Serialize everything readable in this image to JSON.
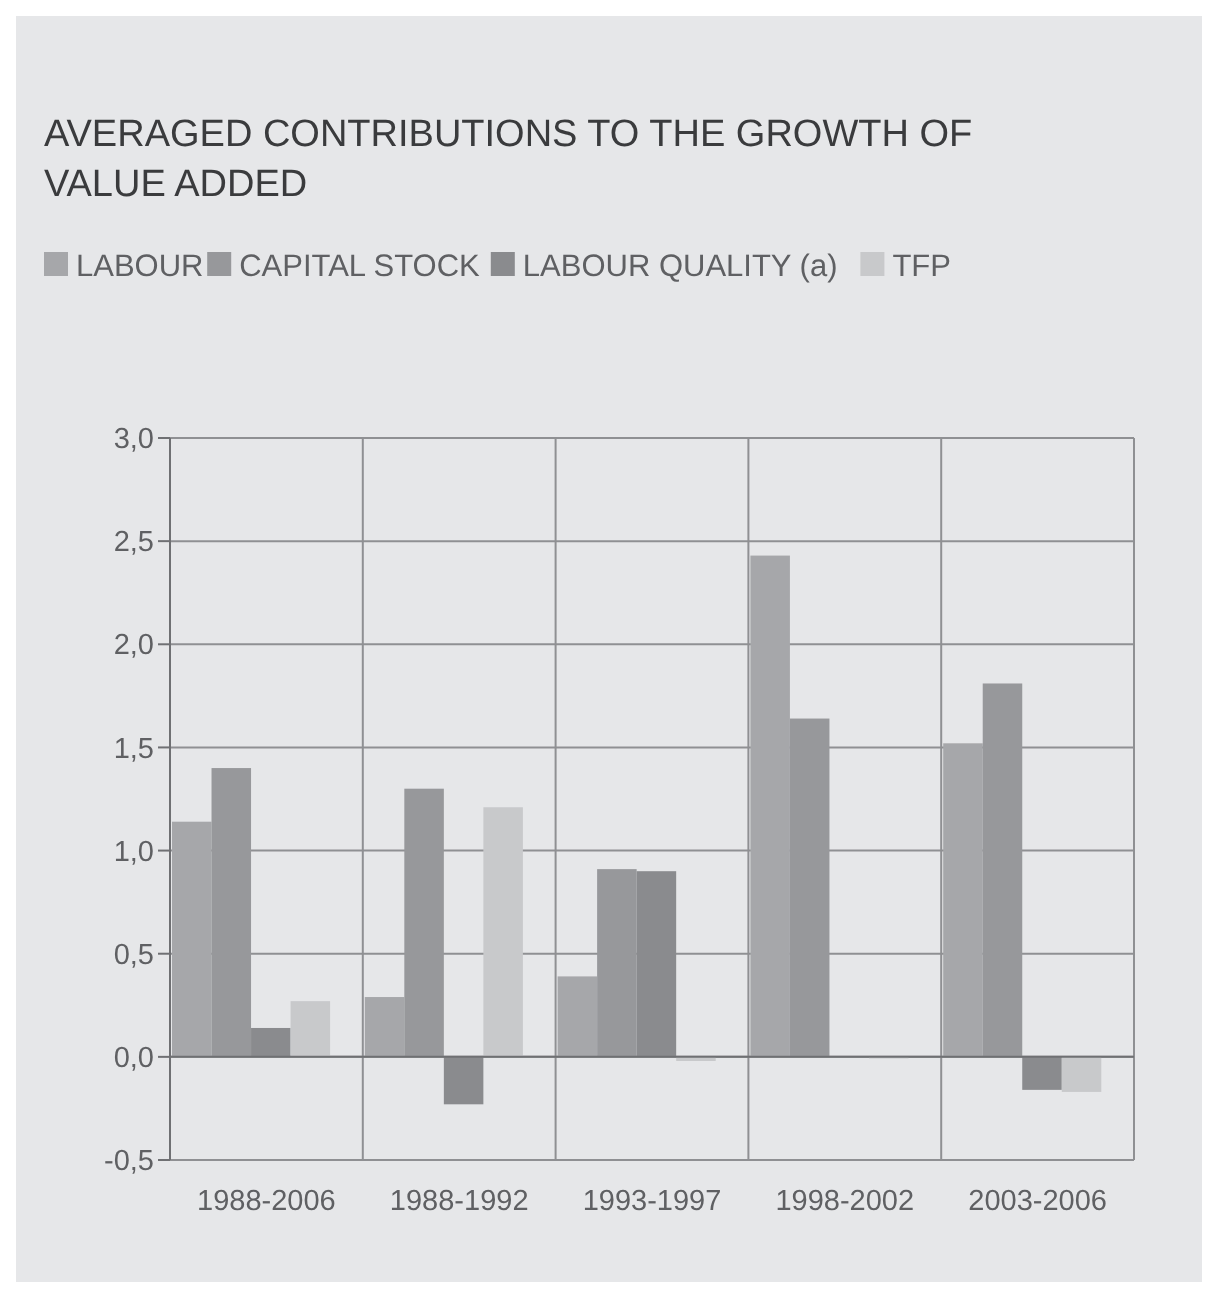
{
  "chart_data": {
    "type": "bar",
    "title": "AVERAGED CONTRIBUTIONS TO THE GROWTH OF VALUE ADDED",
    "categories": [
      "1988-2006",
      "1988-1992",
      "1993-1997",
      "1998-2002",
      "2003-2006"
    ],
    "series": [
      {
        "name": "LABOUR",
        "color": "#a6a7aa",
        "values": [
          1.14,
          0.29,
          0.39,
          2.43,
          1.52
        ]
      },
      {
        "name": "CAPITAL STOCK",
        "color": "#97989b",
        "values": [
          1.4,
          1.3,
          0.91,
          1.64,
          1.81
        ]
      },
      {
        "name": "LABOUR QUALITY (a)",
        "color": "#8a8b8e",
        "values": [
          0.14,
          -0.23,
          0.9,
          null,
          -0.16
        ]
      },
      {
        "name": "TFP",
        "color": "#c8c9cb",
        "values": [
          0.27,
          1.21,
          -0.02,
          0,
          -0.17
        ]
      }
    ],
    "ylim": [
      -0.5,
      3
    ],
    "yticks": [
      {
        "value": -0.5,
        "label": "-0,5"
      },
      {
        "value": 0,
        "label": "0,0"
      },
      {
        "value": 0.5,
        "label": "0,5"
      },
      {
        "value": 1,
        "label": "1,0"
      },
      {
        "value": 1.5,
        "label": "1,5"
      },
      {
        "value": 2,
        "label": "2,0"
      },
      {
        "value": 2.5,
        "label": "2,5"
      },
      {
        "value": 3,
        "label": "3,0"
      }
    ],
    "grid": true,
    "legend": "top left"
  }
}
